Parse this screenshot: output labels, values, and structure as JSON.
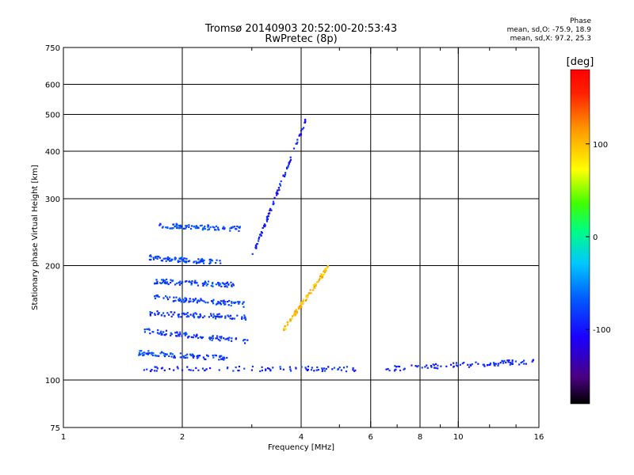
{
  "header": {
    "title_line1": "Tromsø 20140903 20:52:00-20:53:43",
    "title_line2": "RwPretec (8p)",
    "phase_heading": "Phase",
    "phase_stat0": "mean, sd,O: -75.9, 18.9",
    "phase_statX": "mean, sd,X: 97.2, 25.3"
  },
  "chart_data": {
    "type": "scatter",
    "xlabel": "Frequency [MHz]",
    "ylabel": "Stationary phase Virtual Height [km]",
    "x_scale": "log",
    "y_scale": "log",
    "xlim": [
      1,
      16
    ],
    "ylim": [
      75,
      750
    ],
    "x_ticks": [
      1,
      2,
      4,
      6,
      8,
      10,
      16
    ],
    "x_tick_labels": [
      "1",
      "2",
      "4",
      "6",
      "8",
      "10",
      "16"
    ],
    "x_minor": [
      3,
      5,
      7,
      9,
      12,
      14
    ],
    "y_ticks": [
      75,
      100,
      200,
      300,
      400,
      500,
      600,
      750
    ],
    "y_tick_labels": [
      "75",
      "100",
      "200",
      "300",
      "400",
      "500",
      "600",
      "750"
    ],
    "grid_x": [
      2,
      4,
      6,
      8,
      10
    ],
    "grid_y": [
      100,
      200,
      300,
      400,
      500,
      600
    ],
    "colorbar": {
      "label": "[deg]",
      "range": [
        -180,
        180
      ],
      "ticks": [
        100,
        0,
        -100
      ],
      "tick_labels": [
        "100",
        "0",
        "-100"
      ],
      "colormap": "rainbow (black-purple-blue-cyan-green-yellow-orange-red)"
    },
    "traces": [
      {
        "name": "O-mode low echo ~107 km",
        "x_range": [
          1.6,
          5.5
        ],
        "height": [
          107,
          107
        ],
        "phase": -90
      },
      {
        "name": "O-mode echo ~115 km",
        "x_range": [
          1.55,
          2.6
        ],
        "height": [
          118,
          114
        ],
        "phase": -80
      },
      {
        "name": "O-mode echo ~128 km",
        "x_range": [
          1.6,
          3.0
        ],
        "height": [
          135,
          126
        ],
        "phase": -85
      },
      {
        "name": "O-mode echo ~148 km",
        "x_range": [
          1.65,
          2.9
        ],
        "height": [
          150,
          146
        ],
        "phase": -85
      },
      {
        "name": "O-mode echo ~160 km",
        "x_range": [
          1.7,
          2.9
        ],
        "height": [
          165,
          158
        ],
        "phase": -80
      },
      {
        "name": "O-mode echo ~180 km",
        "x_range": [
          1.7,
          2.7
        ],
        "height": [
          182,
          178
        ],
        "phase": -80
      },
      {
        "name": "O-mode echo ~205 km",
        "x_range": [
          1.65,
          2.5
        ],
        "height": [
          210,
          204
        ],
        "phase": -80
      },
      {
        "name": "O-mode echo ~250 km",
        "x_range": [
          1.75,
          2.8
        ],
        "height": [
          255,
          250
        ],
        "phase": -75
      },
      {
        "name": "O-mode F-layer trace",
        "x_range": [
          3.0,
          4.1
        ],
        "height": [
          210,
          480
        ],
        "phase": -95
      },
      {
        "name": "X-mode trace",
        "x_range": [
          3.6,
          4.7
        ],
        "height": [
          135,
          200
        ],
        "phase": 100
      },
      {
        "name": "Far low echo ~107 km",
        "x_range": [
          6.5,
          15.5
        ],
        "height": [
          107,
          112
        ],
        "phase": -90
      }
    ]
  }
}
